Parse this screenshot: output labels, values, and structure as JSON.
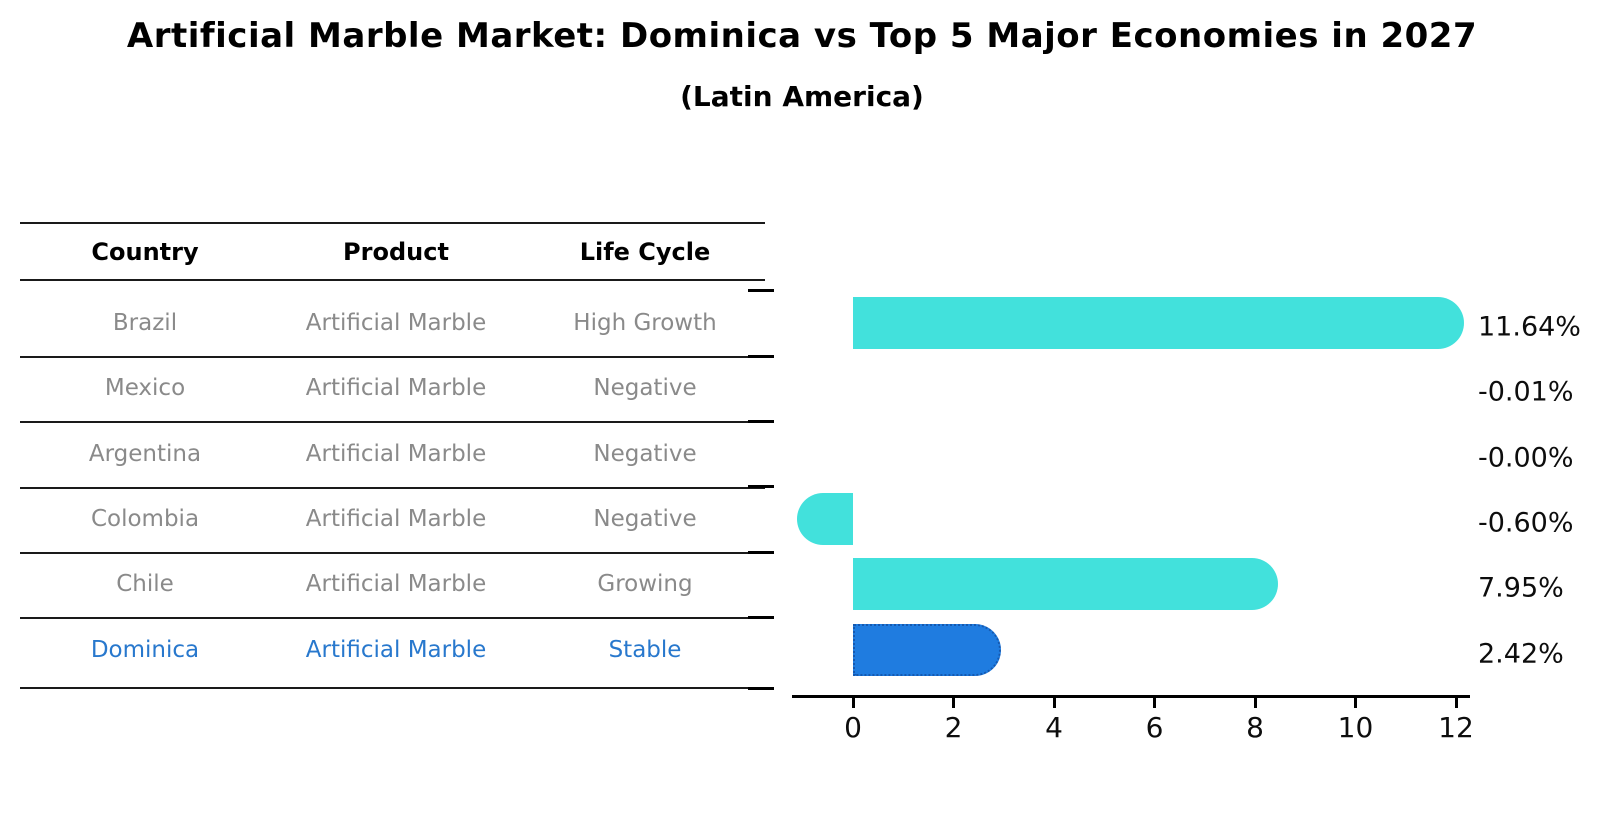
{
  "title": "Artificial Marble Market: Dominica vs Top 5 Major Economies in 2027",
  "subtitle": "(Latin America)",
  "table": {
    "headers": [
      "Country",
      "Product",
      "Life Cycle"
    ],
    "rows": [
      {
        "country": "Brazil",
        "product": "Artificial Marble",
        "life_cycle": "High Growth",
        "highlight": false
      },
      {
        "country": "Mexico",
        "product": "Artificial Marble",
        "life_cycle": "Negative",
        "highlight": false
      },
      {
        "country": "Argentina",
        "product": "Artificial Marble",
        "life_cycle": "Negative",
        "highlight": false
      },
      {
        "country": "Colombia",
        "product": "Artificial Marble",
        "life_cycle": "Negative",
        "highlight": false
      },
      {
        "country": "Chile",
        "product": "Artificial Marble",
        "life_cycle": "Growing",
        "highlight": false
      },
      {
        "country": "Dominica",
        "product": "Artificial Marble",
        "life_cycle": "Stable",
        "highlight": true
      }
    ]
  },
  "colors": {
    "row_text": "#8a8a8a",
    "highlight_text": "#2878CD",
    "header_text": "#000000",
    "bar_default": "#42E1DC",
    "bar_highlight": "#1F7CE0",
    "bar_highlight_border": "#1559B0",
    "axis": "#000000"
  },
  "chart_data": {
    "type": "bar",
    "orientation": "horizontal",
    "title": "Artificial Marble Market: Dominica vs Top 5 Major Economies in 2027",
    "subtitle": "(Latin America)",
    "categories": [
      "Brazil",
      "Mexico",
      "Argentina",
      "Colombia",
      "Chile",
      "Dominica"
    ],
    "values": [
      11.64,
      -0.01,
      0.0,
      -0.6,
      7.95,
      2.42
    ],
    "value_labels": [
      "11.64%",
      "-0.01%",
      "-0.00%",
      "-0.60%",
      "7.95%",
      "2.42%"
    ],
    "highlight_index": 5,
    "x_tick_labels": [
      "0",
      "2",
      "4",
      "6",
      "8",
      "10",
      "12"
    ],
    "x_tick_values": [
      0,
      2,
      4,
      6,
      8,
      10,
      12
    ],
    "xlim": [
      -1.25,
      12.3
    ],
    "grid": false,
    "legend": false
  }
}
